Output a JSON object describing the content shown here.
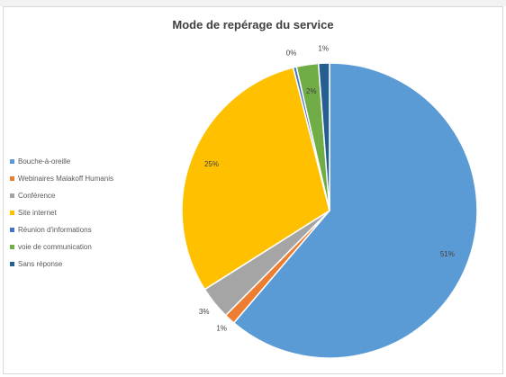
{
  "chart_data": {
    "type": "pie",
    "title": "Mode de repérage du service",
    "legend_position": "left",
    "categories": [
      "Bouche-à-oreille",
      "Webinaires Malakoff Humanis",
      "Conférence",
      "Site internet",
      "Réunion d'informations",
      "voie de communication",
      "Sans réponse"
    ],
    "values": [
      51,
      1,
      3,
      25,
      0,
      2,
      1
    ],
    "data_labels": [
      "51%",
      "1%",
      "3%",
      "25%",
      "0%",
      "2%",
      "1%"
    ],
    "colors": [
      "#5b9bd5",
      "#ed7d31",
      "#a5a5a5",
      "#ffc000",
      "#4472c4",
      "#70ad47",
      "#255e91"
    ]
  }
}
